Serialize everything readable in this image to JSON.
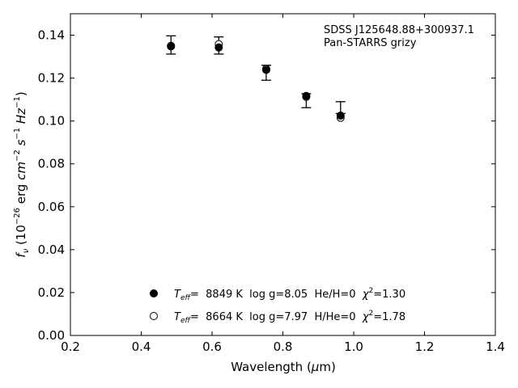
{
  "chart_data": {
    "type": "scatter",
    "annotation_lines": [
      "SDSS J125648.88+300937.1",
      "Pan-STARRS grizy"
    ],
    "xlabel": {
      "text": "Wavelength (",
      "mu": "μ",
      "rest": "m)"
    },
    "ylabel": {
      "f": "f",
      "sub": "ν",
      "open": " (10",
      "sup1": "−26",
      "erg": " erg ",
      "cm": "cm",
      "sup2": "−2",
      "s": " s",
      "sup3": "−1",
      "Hz": " Hz",
      "sup4": "−1",
      "close": ")"
    },
    "xlim": [
      0.2,
      1.4
    ],
    "ylim": [
      0.0,
      0.15
    ],
    "xticks": [
      0.2,
      0.4,
      0.6,
      0.8,
      1.0,
      1.2,
      1.4
    ],
    "yticks": [
      0.0,
      0.02,
      0.04,
      0.06,
      0.08,
      0.1,
      0.12,
      0.14
    ],
    "xtick_labels": [
      "0.2",
      "0.4",
      "0.6",
      "0.8",
      "1.0",
      "1.2",
      "1.4"
    ],
    "ytick_labels": [
      "0.00",
      "0.02",
      "0.04",
      "0.06",
      "0.08",
      "0.10",
      "0.12",
      "0.14"
    ],
    "grid": false,
    "legend_position": "lower-center",
    "observed": {
      "x": [
        0.484,
        0.619,
        0.753,
        0.866,
        0.963
      ],
      "y": [
        0.1352,
        0.1352,
        0.1225,
        0.1097,
        0.1055
      ],
      "yerr_low": [
        0.004,
        0.004,
        0.0035,
        0.0035,
        0.002
      ],
      "yerr_high": [
        0.0045,
        0.004,
        0.0035,
        0.003,
        0.0035
      ]
    },
    "series": [
      {
        "marker": "filled-circle",
        "x": [
          0.484,
          0.619,
          0.753,
          0.866,
          0.963
        ],
        "y": [
          0.135,
          0.1343,
          0.1238,
          0.1117,
          0.1025
        ],
        "legend": {
          "teff": "T",
          "teff_sub": "eff",
          "eq": "=  8849 K  log g=8.05  He/H=0  ",
          "chi": "χ",
          "chi_sup": "2",
          "chi_val": "=1.30"
        }
      },
      {
        "marker": "open-circle",
        "x": [
          0.484,
          0.619,
          0.753,
          0.866,
          0.963
        ],
        "y": [
          0.1348,
          0.1358,
          0.1243,
          0.1113,
          0.1015
        ],
        "legend": {
          "teff": "T",
          "teff_sub": "eff",
          "eq": "=  8664 K  log g=7.97  H/He=0  ",
          "chi": "χ",
          "chi_sup": "2",
          "chi_val": "=1.78"
        }
      }
    ]
  }
}
